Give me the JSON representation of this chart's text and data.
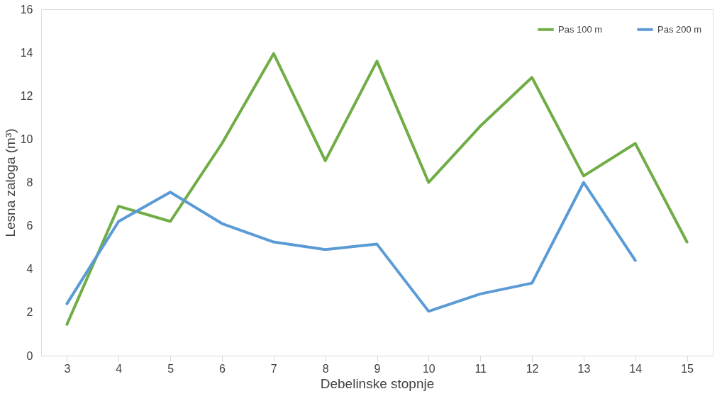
{
  "chart_data": {
    "type": "line",
    "xlabel": "Debelinske stopnje",
    "ylabel": "Lesna zaloga (m³)",
    "categories": [
      "3",
      "4",
      "5",
      "6",
      "7",
      "8",
      "9",
      "10",
      "11",
      "12",
      "13",
      "14",
      "15"
    ],
    "series": [
      {
        "name": "Pas 100 m",
        "color": "#70ad47",
        "values": [
          1.45,
          6.9,
          6.2,
          9.8,
          13.95,
          9.0,
          13.6,
          8.0,
          10.6,
          12.85,
          8.3,
          9.8,
          5.25
        ]
      },
      {
        "name": "Pas 200 m",
        "color": "#5b9bd5",
        "values": [
          2.4,
          6.2,
          7.55,
          6.1,
          5.25,
          4.9,
          5.15,
          2.05,
          2.85,
          3.35,
          8.0,
          4.4,
          null
        ]
      }
    ],
    "ylim": [
      0,
      16
    ],
    "yticks": [
      0,
      2,
      4,
      6,
      8,
      10,
      12,
      14,
      16
    ],
    "grid": false,
    "legend": "top right",
    "marker": "none",
    "line_style": "solid"
  }
}
